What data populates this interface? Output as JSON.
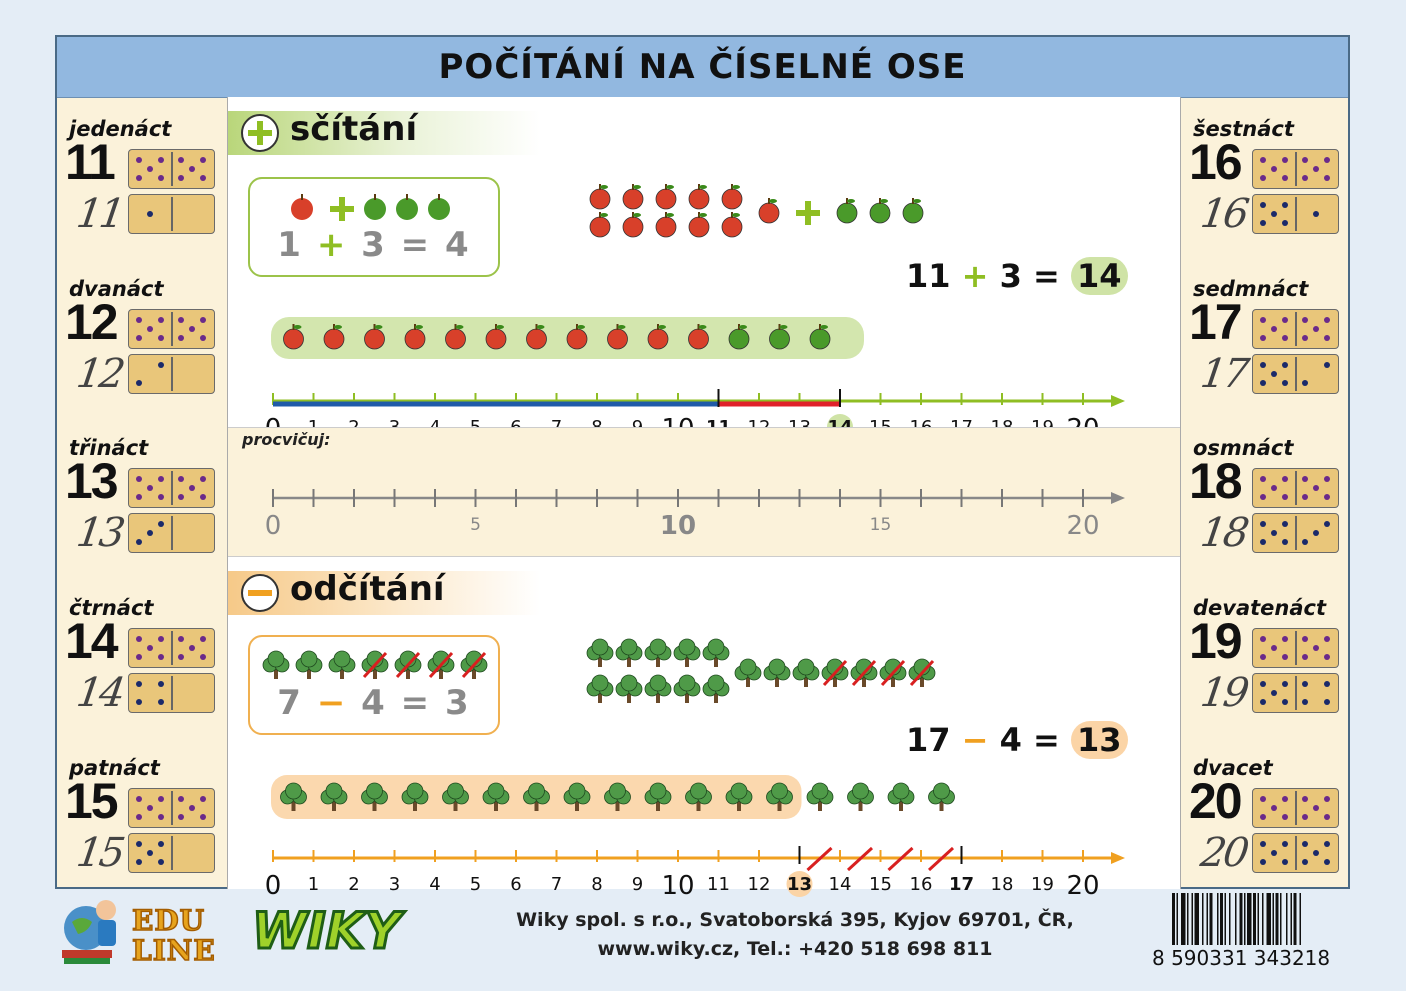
{
  "title": "POČÍTÁNÍ NA ČÍSELNÉ OSE",
  "left_numbers": [
    {
      "word": "jedenáct",
      "num": "11",
      "hand": "11",
      "pips": 1
    },
    {
      "word": "dvanáct",
      "num": "12",
      "hand": "12",
      "pips": 2
    },
    {
      "word": "třináct",
      "num": "13",
      "hand": "13",
      "pips": 3
    },
    {
      "word": "čtrnáct",
      "num": "14",
      "hand": "14",
      "pips": 4
    },
    {
      "word": "patnáct",
      "num": "15",
      "hand": "15",
      "pips": 5
    }
  ],
  "right_numbers": [
    {
      "word": "šestnáct",
      "num": "16",
      "hand": "16",
      "pips": 6
    },
    {
      "word": "sedmnáct",
      "num": "17",
      "hand": "17",
      "pips": 7
    },
    {
      "word": "osmnáct",
      "num": "18",
      "hand": "18",
      "pips": 8
    },
    {
      "word": "devatenáct",
      "num": "19",
      "hand": "19",
      "pips": 9
    },
    {
      "word": "dvacet",
      "num": "20",
      "hand": "20",
      "pips": 10
    }
  ],
  "addition": {
    "label": "sčítání",
    "example": {
      "a": "1",
      "op": "+",
      "b": "3",
      "eq": "=",
      "result": "4"
    },
    "equation": {
      "a": "11",
      "op": "+",
      "b": "3",
      "eq": "=",
      "result": "14"
    },
    "start": 11,
    "end": 14
  },
  "practice": {
    "label": "procvičuj:",
    "labels": [
      "0",
      "5",
      "10",
      "15",
      "20"
    ]
  },
  "subtraction": {
    "label": "odčítání",
    "example": {
      "a": "7",
      "op": "−",
      "b": "4",
      "eq": "=",
      "result": "3"
    },
    "equation": {
      "a": "17",
      "op": "−",
      "b": "4",
      "eq": "=",
      "result": "13"
    },
    "start": 17,
    "end": 13
  },
  "footer": {
    "company_line1": "Wiky spol. s r.o., Svatoborská 395, Kyjov 69701, ČR,",
    "company_line2": "www.wiky.cz, Tel.: +420 518 698 811",
    "edu_line1": "EDU",
    "edu_line2": "LINE",
    "brand": "WIKY",
    "barcode": "8 590331 343218"
  },
  "colors": {
    "title_bar": "#92b8e0",
    "add_green": "#8fbe23",
    "sub_orange": "#f0a020",
    "axis_blue": "#1f5aa8",
    "axis_red": "#e0202a",
    "apple_red": "#d8402a",
    "apple_green": "#4a9a2a",
    "tree_green": "#4f9a48"
  }
}
